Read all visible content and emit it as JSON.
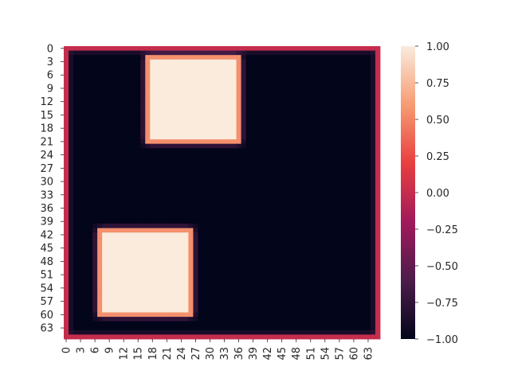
{
  "chart_data": {
    "type": "heatmap",
    "title": "",
    "xlabel": "",
    "ylabel": "",
    "grid": {
      "rows": 66,
      "cols": 66
    },
    "background_value": -1.0,
    "border": {
      "thickness_cells": 1,
      "value": 0.0
    },
    "squares": [
      {
        "value": 1.0,
        "row_range": [
          2,
          21
        ],
        "col_range": [
          17,
          36
        ]
      },
      {
        "value": 1.0,
        "row_range": [
          41,
          60
        ],
        "col_range": [
          7,
          26
        ]
      }
    ],
    "x_tick_labels": [
      "0",
      "3",
      "6",
      "9",
      "12",
      "15",
      "18",
      "21",
      "24",
      "27",
      "30",
      "33",
      "36",
      "39",
      "42",
      "45",
      "48",
      "51",
      "54",
      "57",
      "60",
      "63"
    ],
    "y_tick_labels": [
      "0",
      "3",
      "6",
      "9",
      "12",
      "15",
      "18",
      "21",
      "24",
      "27",
      "30",
      "33",
      "36",
      "39",
      "42",
      "45",
      "48",
      "51",
      "54",
      "57",
      "60",
      "63"
    ],
    "colorbar": {
      "range": [
        -1.0,
        1.0
      ],
      "ticks": [
        "1.00",
        "0.75",
        "0.50",
        "0.25",
        "0.00",
        "−0.25",
        "−0.50",
        "−0.75",
        "−1.00"
      ],
      "colormap": "rocket",
      "colormap_stops": [
        "#03051a",
        "#4c1d4b",
        "#a11a5b",
        "#e83f3f",
        "#f69c73",
        "#faebdd"
      ]
    }
  }
}
